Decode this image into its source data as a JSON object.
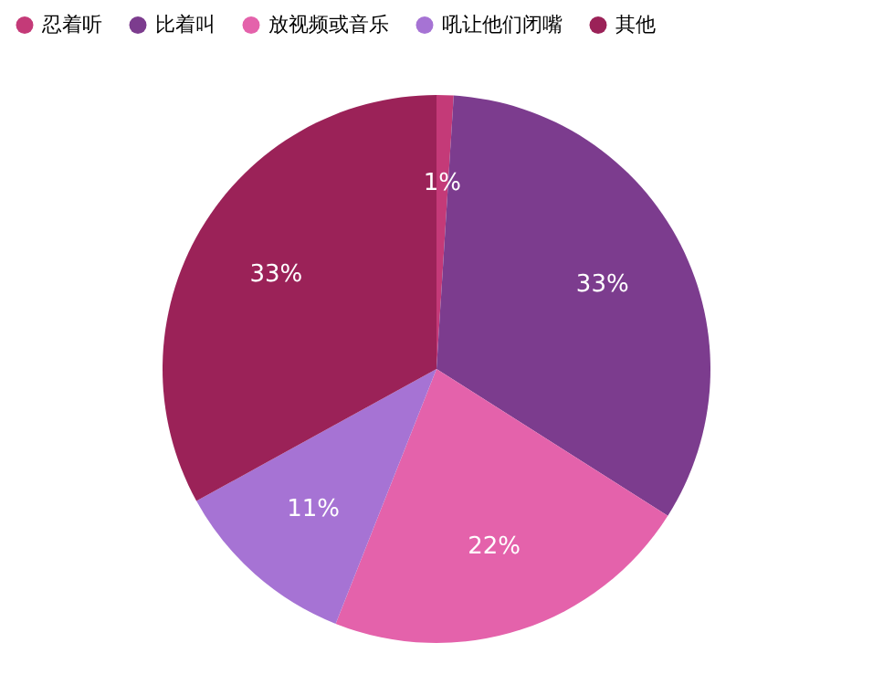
{
  "chart_data": {
    "type": "pie",
    "categories": [
      "忍着听",
      "比着叫",
      "放视频或音乐",
      "吼让他们闭嘴",
      "其他"
    ],
    "values": [
      1,
      33,
      22,
      11,
      33
    ],
    "colors": [
      "#c43a78",
      "#7c3c8e",
      "#e462ab",
      "#a673d4",
      "#9b2258"
    ],
    "value_labels": [
      "1%",
      "33%",
      "22%",
      "11%",
      "33%"
    ],
    "legend": "top"
  }
}
